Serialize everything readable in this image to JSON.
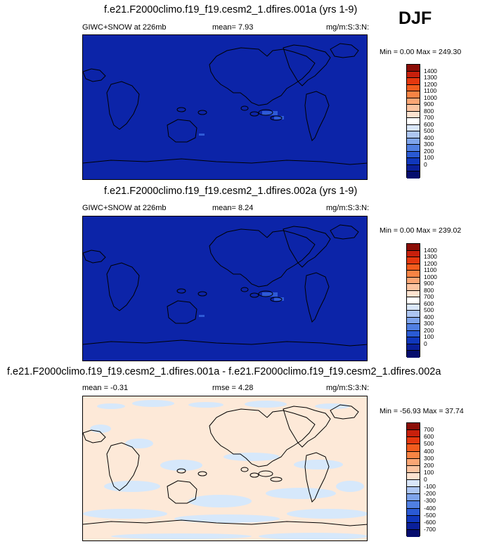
{
  "season": "DJF",
  "panels": [
    {
      "id": "p1",
      "title": "f.e21.F2000climo.f19_f19.cesm2_1.dfires.001a (yrs 1-9)",
      "left_label": "GIWC+SNOW at 226mb",
      "mid_label": "mean=   7.93",
      "units": "mg/m:S:3:N:",
      "minmax": "Min =   0.00 Max = 249.30",
      "field_color": "#0c24a8",
      "colorbar": {
        "labels": [
          "1400",
          "1300",
          "1200",
          "1100",
          "1000",
          "900",
          "800",
          "700",
          "600",
          "500",
          "400",
          "300",
          "200",
          "100",
          "0"
        ],
        "colors": [
          "#8b0d06",
          "#c8200c",
          "#e5380f",
          "#f25c1e",
          "#f88444",
          "#fba675",
          "#fcc4a1",
          "#fde2cf",
          "#ffffff",
          "#d9e6fa",
          "#adc6f3",
          "#7ea4ec",
          "#507fe2",
          "#2a5ad4",
          "#1037bc",
          "#0a1f9a",
          "#050d6e"
        ]
      }
    },
    {
      "id": "p2",
      "title": "f.e21.F2000climo.f19_f19.cesm2_1.dfires.002a (yrs 1-9)",
      "left_label": "GIWC+SNOW at 226mb",
      "mid_label": "mean=   8.24",
      "units": "mg/m:S:3:N:",
      "minmax": "Min =   0.00 Max = 239.02",
      "field_color": "#0c24a8",
      "colorbar": {
        "labels": [
          "1400",
          "1300",
          "1200",
          "1100",
          "1000",
          "900",
          "800",
          "700",
          "600",
          "500",
          "400",
          "300",
          "200",
          "100",
          "0"
        ],
        "colors": [
          "#8b0d06",
          "#c8200c",
          "#e5380f",
          "#f25c1e",
          "#f88444",
          "#fba675",
          "#fcc4a1",
          "#fde2cf",
          "#ffffff",
          "#d9e6fa",
          "#adc6f3",
          "#7ea4ec",
          "#507fe2",
          "#2a5ad4",
          "#1037bc",
          "#0a1f9a",
          "#050d6e"
        ]
      }
    },
    {
      "id": "p3",
      "title": "f.e21.F2000climo.f19_f19.cesm2_1.dfires.001a - f.e21.F2000climo.f19_f19.cesm2_1.dfires.002a",
      "left_label": "mean =  -0.31",
      "mid_label": "rmse =   4.28",
      "units": "mg/m:S:3:N:",
      "minmax": "Min = -56.93 Max =  37.74",
      "field_color": "#fde9d8",
      "colorbar": {
        "labels": [
          "700",
          "600",
          "500",
          "400",
          "300",
          "200",
          "100",
          "0",
          "-100",
          "-200",
          "-300",
          "-400",
          "-500",
          "-600",
          "-700"
        ],
        "colors": [
          "#8b0d06",
          "#c8200c",
          "#e5380f",
          "#f25c1e",
          "#f88444",
          "#fba675",
          "#fcc4a1",
          "#fde2cf",
          "#d9e6fa",
          "#adc6f3",
          "#7ea4ec",
          "#507fe2",
          "#2a5ad4",
          "#1037bc",
          "#0a1f9a",
          "#050d6e"
        ]
      }
    }
  ]
}
